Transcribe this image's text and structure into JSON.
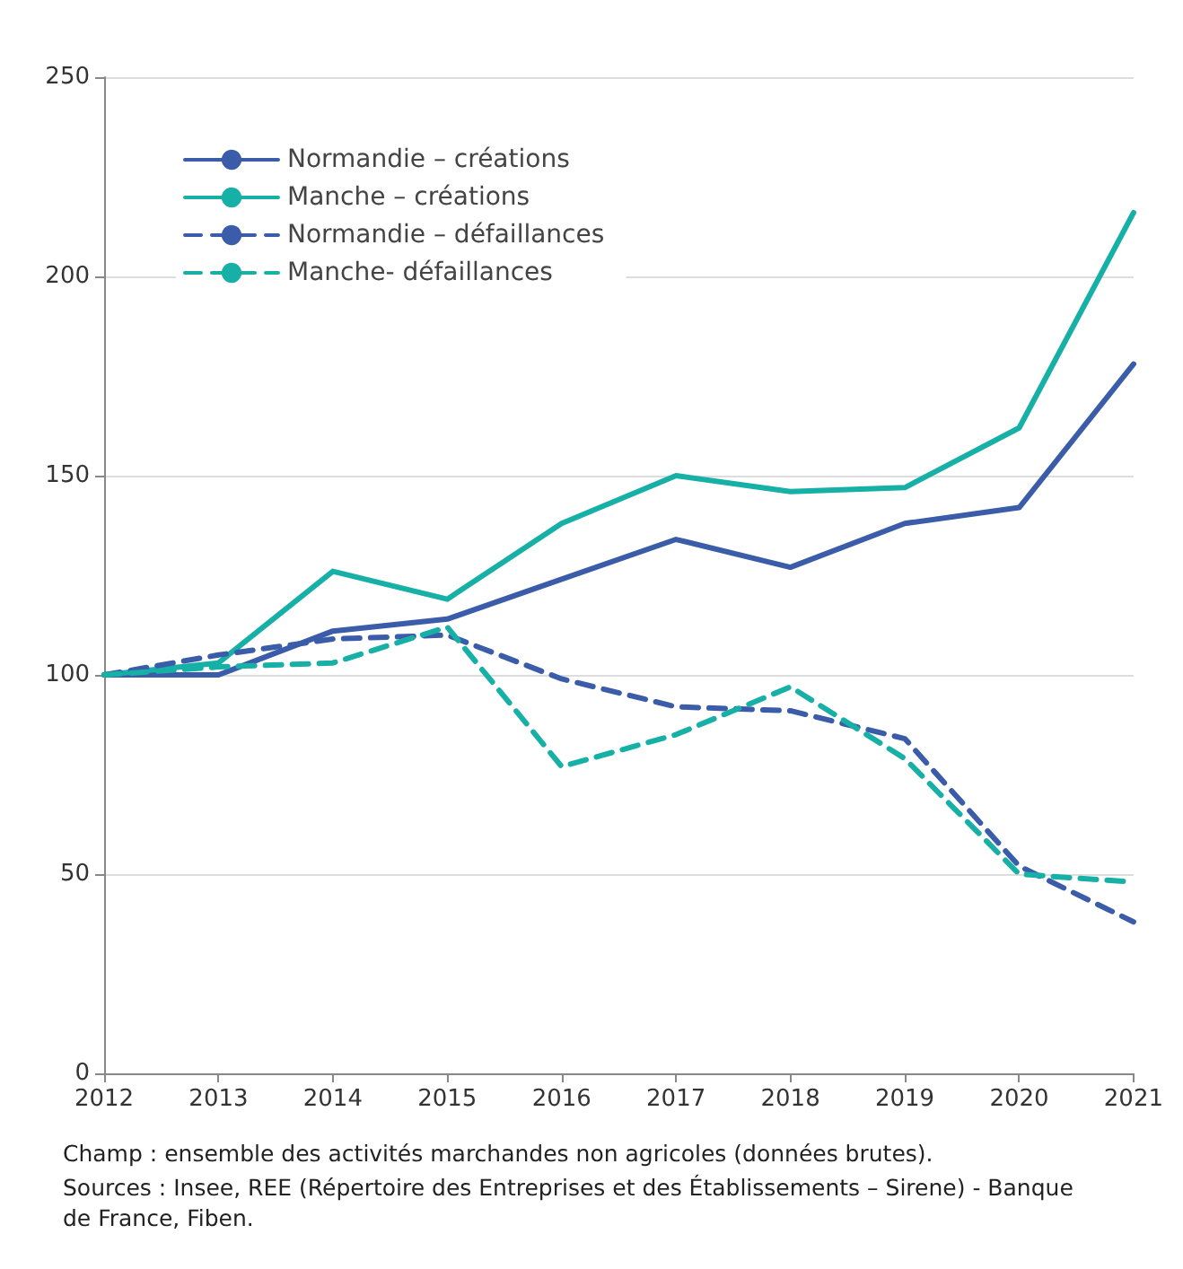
{
  "chart_data": {
    "type": "line",
    "categories": [
      "2012",
      "2013",
      "2014",
      "2015",
      "2016",
      "2017",
      "2018",
      "2019",
      "2020",
      "2021"
    ],
    "series": [
      {
        "name": "Normandie – créations",
        "color": "#3b5ca8",
        "line_style": "solid",
        "values": [
          100,
          100,
          111,
          114,
          124,
          134,
          127,
          138,
          142,
          178
        ]
      },
      {
        "name": "Manche – créations",
        "color": "#17b0a7",
        "line_style": "solid",
        "values": [
          100,
          103,
          126,
          119,
          138,
          150,
          146,
          147,
          162,
          216
        ]
      },
      {
        "name": "Normandie – défaillances",
        "color": "#3b5ca8",
        "line_style": "dashed",
        "values": [
          100,
          105,
          109,
          110,
          99,
          92,
          91,
          84,
          52,
          38
        ]
      },
      {
        "name": "Manche- défaillances",
        "color": "#17b0a7",
        "line_style": "dashed",
        "values": [
          100,
          102,
          103,
          112,
          77,
          85,
          97,
          79,
          50,
          48
        ]
      }
    ],
    "ylim": [
      0,
      250
    ],
    "yticks": [
      0,
      50,
      100,
      150,
      200,
      250
    ],
    "grid": "y",
    "legend": "top left",
    "marker": "none",
    "annotations": [
      "Champ : ensemble des activités marchandes non agricoles (données brutes).",
      "Sources : Insee, REE (Répertoire des Entreprises et des Établissements – Sirene) - Banque de France, Fiben."
    ]
  }
}
